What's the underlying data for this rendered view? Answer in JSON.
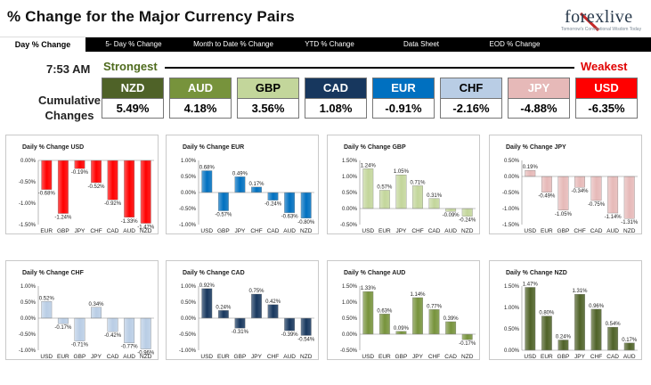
{
  "header": {
    "title": "% Change for the Major Currency Pairs",
    "logo_text": "forexlive",
    "logo_tagline": "Tomorrow's Conventional Wisdom Today"
  },
  "tabs": [
    {
      "label": "Day % Change",
      "active": true
    },
    {
      "label": "5- Day % Change",
      "active": false
    },
    {
      "label": "Month to Date % Change",
      "active": false
    },
    {
      "label": "YTD % Change",
      "active": false
    },
    {
      "label": "Data Sheet",
      "active": false
    },
    {
      "label": "EOD % Change",
      "active": false
    }
  ],
  "summary": {
    "time": "7:53 AM",
    "strongest_label": "Strongest",
    "weakest_label": "Weakest",
    "row_label": "Cumulative Changes",
    "currencies": [
      {
        "code": "NZD",
        "value": "5.49%",
        "bg": "#4f6228",
        "fg": "#ffffff"
      },
      {
        "code": "AUD",
        "value": "4.18%",
        "bg": "#77933c",
        "fg": "#ffffff"
      },
      {
        "code": "GBP",
        "value": "3.56%",
        "bg": "#c3d69b",
        "fg": "#000000"
      },
      {
        "code": "CAD",
        "value": "1.08%",
        "bg": "#17375e",
        "fg": "#ffffff"
      },
      {
        "code": "EUR",
        "value": "-0.91%",
        "bg": "#0070c0",
        "fg": "#ffffff"
      },
      {
        "code": "CHF",
        "value": "-2.16%",
        "bg": "#b9cde5",
        "fg": "#000000"
      },
      {
        "code": "JPY",
        "value": "-4.88%",
        "bg": "#e6b9b8",
        "fg": "#ffffff"
      },
      {
        "code": "USD",
        "value": "-6.35%",
        "bg": "#ff0000",
        "fg": "#ffffff"
      }
    ]
  },
  "chart_data": [
    {
      "type": "bar",
      "title": "Daily % Change USD",
      "categories": [
        "EUR",
        "GBP",
        "JPY",
        "CHF",
        "CAD",
        "AUD",
        "NZD"
      ],
      "values": [
        -0.68,
        -1.24,
        -0.19,
        -0.52,
        -0.92,
        -1.33,
        -1.47
      ],
      "labels": [
        "-0.68%",
        "-1.24%",
        "-0.19%",
        "-0.52%",
        "-0.92%",
        "-1.33%",
        "-1.47%"
      ],
      "ylim": [
        -1.5,
        0.0
      ],
      "ticks": [
        0,
        -0.5,
        -1.0,
        -1.5
      ],
      "tick_labels": [
        "0.00%",
        "-0.50%",
        "-1.00%",
        "-1.50%"
      ],
      "colors": [
        "#ff0000"
      ]
    },
    {
      "type": "bar",
      "title": "Daily % Change EUR",
      "categories": [
        "USD",
        "GBP",
        "JPY",
        "CHF",
        "CAD",
        "AUD",
        "NZD"
      ],
      "values": [
        0.68,
        -0.57,
        0.49,
        0.17,
        -0.24,
        -0.63,
        -0.8
      ],
      "labels": [
        "0.68%",
        "-0.57%",
        "0.49%",
        "0.17%",
        "-0.24%",
        "-0.63%",
        "-0.80%"
      ],
      "ylim": [
        -1.0,
        1.0
      ],
      "ticks": [
        1.0,
        0.5,
        0,
        -0.5,
        -1.0
      ],
      "tick_labels": [
        "1.00%",
        "0.50%",
        "0.00%",
        "-0.50%",
        "-1.00%"
      ],
      "colors": [
        "#0070c0"
      ]
    },
    {
      "type": "bar",
      "title": "Daily % Change GBP",
      "categories": [
        "USD",
        "EUR",
        "JPY",
        "CHF",
        "CAD",
        "AUD",
        "NZD"
      ],
      "values": [
        1.24,
        0.57,
        1.05,
        0.71,
        0.31,
        -0.09,
        -0.24
      ],
      "labels": [
        "1.24%",
        "0.57%",
        "1.05%",
        "0.71%",
        "0.31%",
        "-0.09%",
        "-0.24%"
      ],
      "ylim": [
        -0.5,
        1.5
      ],
      "ticks": [
        1.5,
        1.0,
        0.5,
        0,
        -0.5
      ],
      "tick_labels": [
        "1.50%",
        "1.00%",
        "0.50%",
        "0.00%",
        "-0.50%"
      ],
      "colors": [
        "#c3d69b"
      ]
    },
    {
      "type": "bar",
      "title": "Daily % Change JPY",
      "categories": [
        "USD",
        "EUR",
        "GBP",
        "CHF",
        "CAD",
        "AUD",
        "NZD"
      ],
      "values": [
        0.19,
        -0.49,
        -1.05,
        -0.34,
        -0.75,
        -1.14,
        -1.31
      ],
      "labels": [
        "0.19%",
        "-0.49%",
        "-1.05%",
        "-0.34%",
        "-0.75%",
        "-1.14%",
        "-1.31%"
      ],
      "ylim": [
        -1.5,
        0.5
      ],
      "ticks": [
        0.5,
        0,
        -0.5,
        -1.0,
        -1.5
      ],
      "tick_labels": [
        "0.50%",
        "0.00%",
        "-0.50%",
        "-1.00%",
        "-1.50%"
      ],
      "colors": [
        "#e6b9b8"
      ]
    },
    {
      "type": "bar",
      "title": "Daily % Change CHF",
      "categories": [
        "USD",
        "EUR",
        "GBP",
        "JPY",
        "CAD",
        "AUD",
        "NZD"
      ],
      "values": [
        0.52,
        -0.17,
        -0.71,
        0.34,
        -0.42,
        -0.77,
        -0.96
      ],
      "labels": [
        "0.52%",
        "-0.17%",
        "-0.71%",
        "0.34%",
        "-0.42%",
        "-0.77%",
        "-0.96%"
      ],
      "ylim": [
        -1.0,
        1.0
      ],
      "ticks": [
        1.0,
        0.5,
        0,
        -0.5,
        -1.0
      ],
      "tick_labels": [
        "1.00%",
        "0.50%",
        "0.00%",
        "-0.50%",
        "-1.00%"
      ],
      "colors": [
        "#b9cde5"
      ]
    },
    {
      "type": "bar",
      "title": "Daily % Change CAD",
      "categories": [
        "USD",
        "EUR",
        "GBP",
        "JPY",
        "CHF",
        "AUD",
        "NZD"
      ],
      "values": [
        0.92,
        0.24,
        -0.31,
        0.75,
        0.42,
        -0.39,
        -0.54
      ],
      "labels": [
        "0.92%",
        "0.24%",
        "-0.31%",
        "0.75%",
        "0.42%",
        "-0.39%",
        "-0.54%"
      ],
      "ylim": [
        -1.0,
        1.0
      ],
      "ticks": [
        1.0,
        0.5,
        0,
        -0.5,
        -1.0
      ],
      "tick_labels": [
        "1.00%",
        "0.50%",
        "0.00%",
        "-0.50%",
        "-1.00%"
      ],
      "colors": [
        "#17375e"
      ]
    },
    {
      "type": "bar",
      "title": "Daily % Change AUD",
      "categories": [
        "USD",
        "EUR",
        "GBP",
        "JPY",
        "CHF",
        "CAD",
        "NZD"
      ],
      "values": [
        1.33,
        0.63,
        0.09,
        1.14,
        0.77,
        0.39,
        -0.17
      ],
      "labels": [
        "1.33%",
        "0.63%",
        "0.09%",
        "1.14%",
        "0.77%",
        "0.39%",
        "-0.17%"
      ],
      "ylim": [
        -0.5,
        1.5
      ],
      "ticks": [
        1.5,
        1.0,
        0.5,
        0,
        -0.5
      ],
      "tick_labels": [
        "1.50%",
        "1.00%",
        "0.50%",
        "0.00%",
        "-0.50%"
      ],
      "colors": [
        "#77933c"
      ]
    },
    {
      "type": "bar",
      "title": "Daily % Change NZD",
      "categories": [
        "USD",
        "EUR",
        "GBP",
        "JPY",
        "CHF",
        "CAD",
        "AUD"
      ],
      "values": [
        1.47,
        0.8,
        0.24,
        1.31,
        0.96,
        0.54,
        0.17
      ],
      "labels": [
        "1.47%",
        "0.80%",
        "0.24%",
        "1.31%",
        "0.96%",
        "0.54%",
        "0.17%"
      ],
      "ylim": [
        0.0,
        1.5
      ],
      "ticks": [
        1.5,
        1.0,
        0.5,
        0
      ],
      "tick_labels": [
        "1.50%",
        "1.00%",
        "0.50%",
        "0.00%"
      ],
      "colors": [
        "#4f6228"
      ]
    }
  ]
}
